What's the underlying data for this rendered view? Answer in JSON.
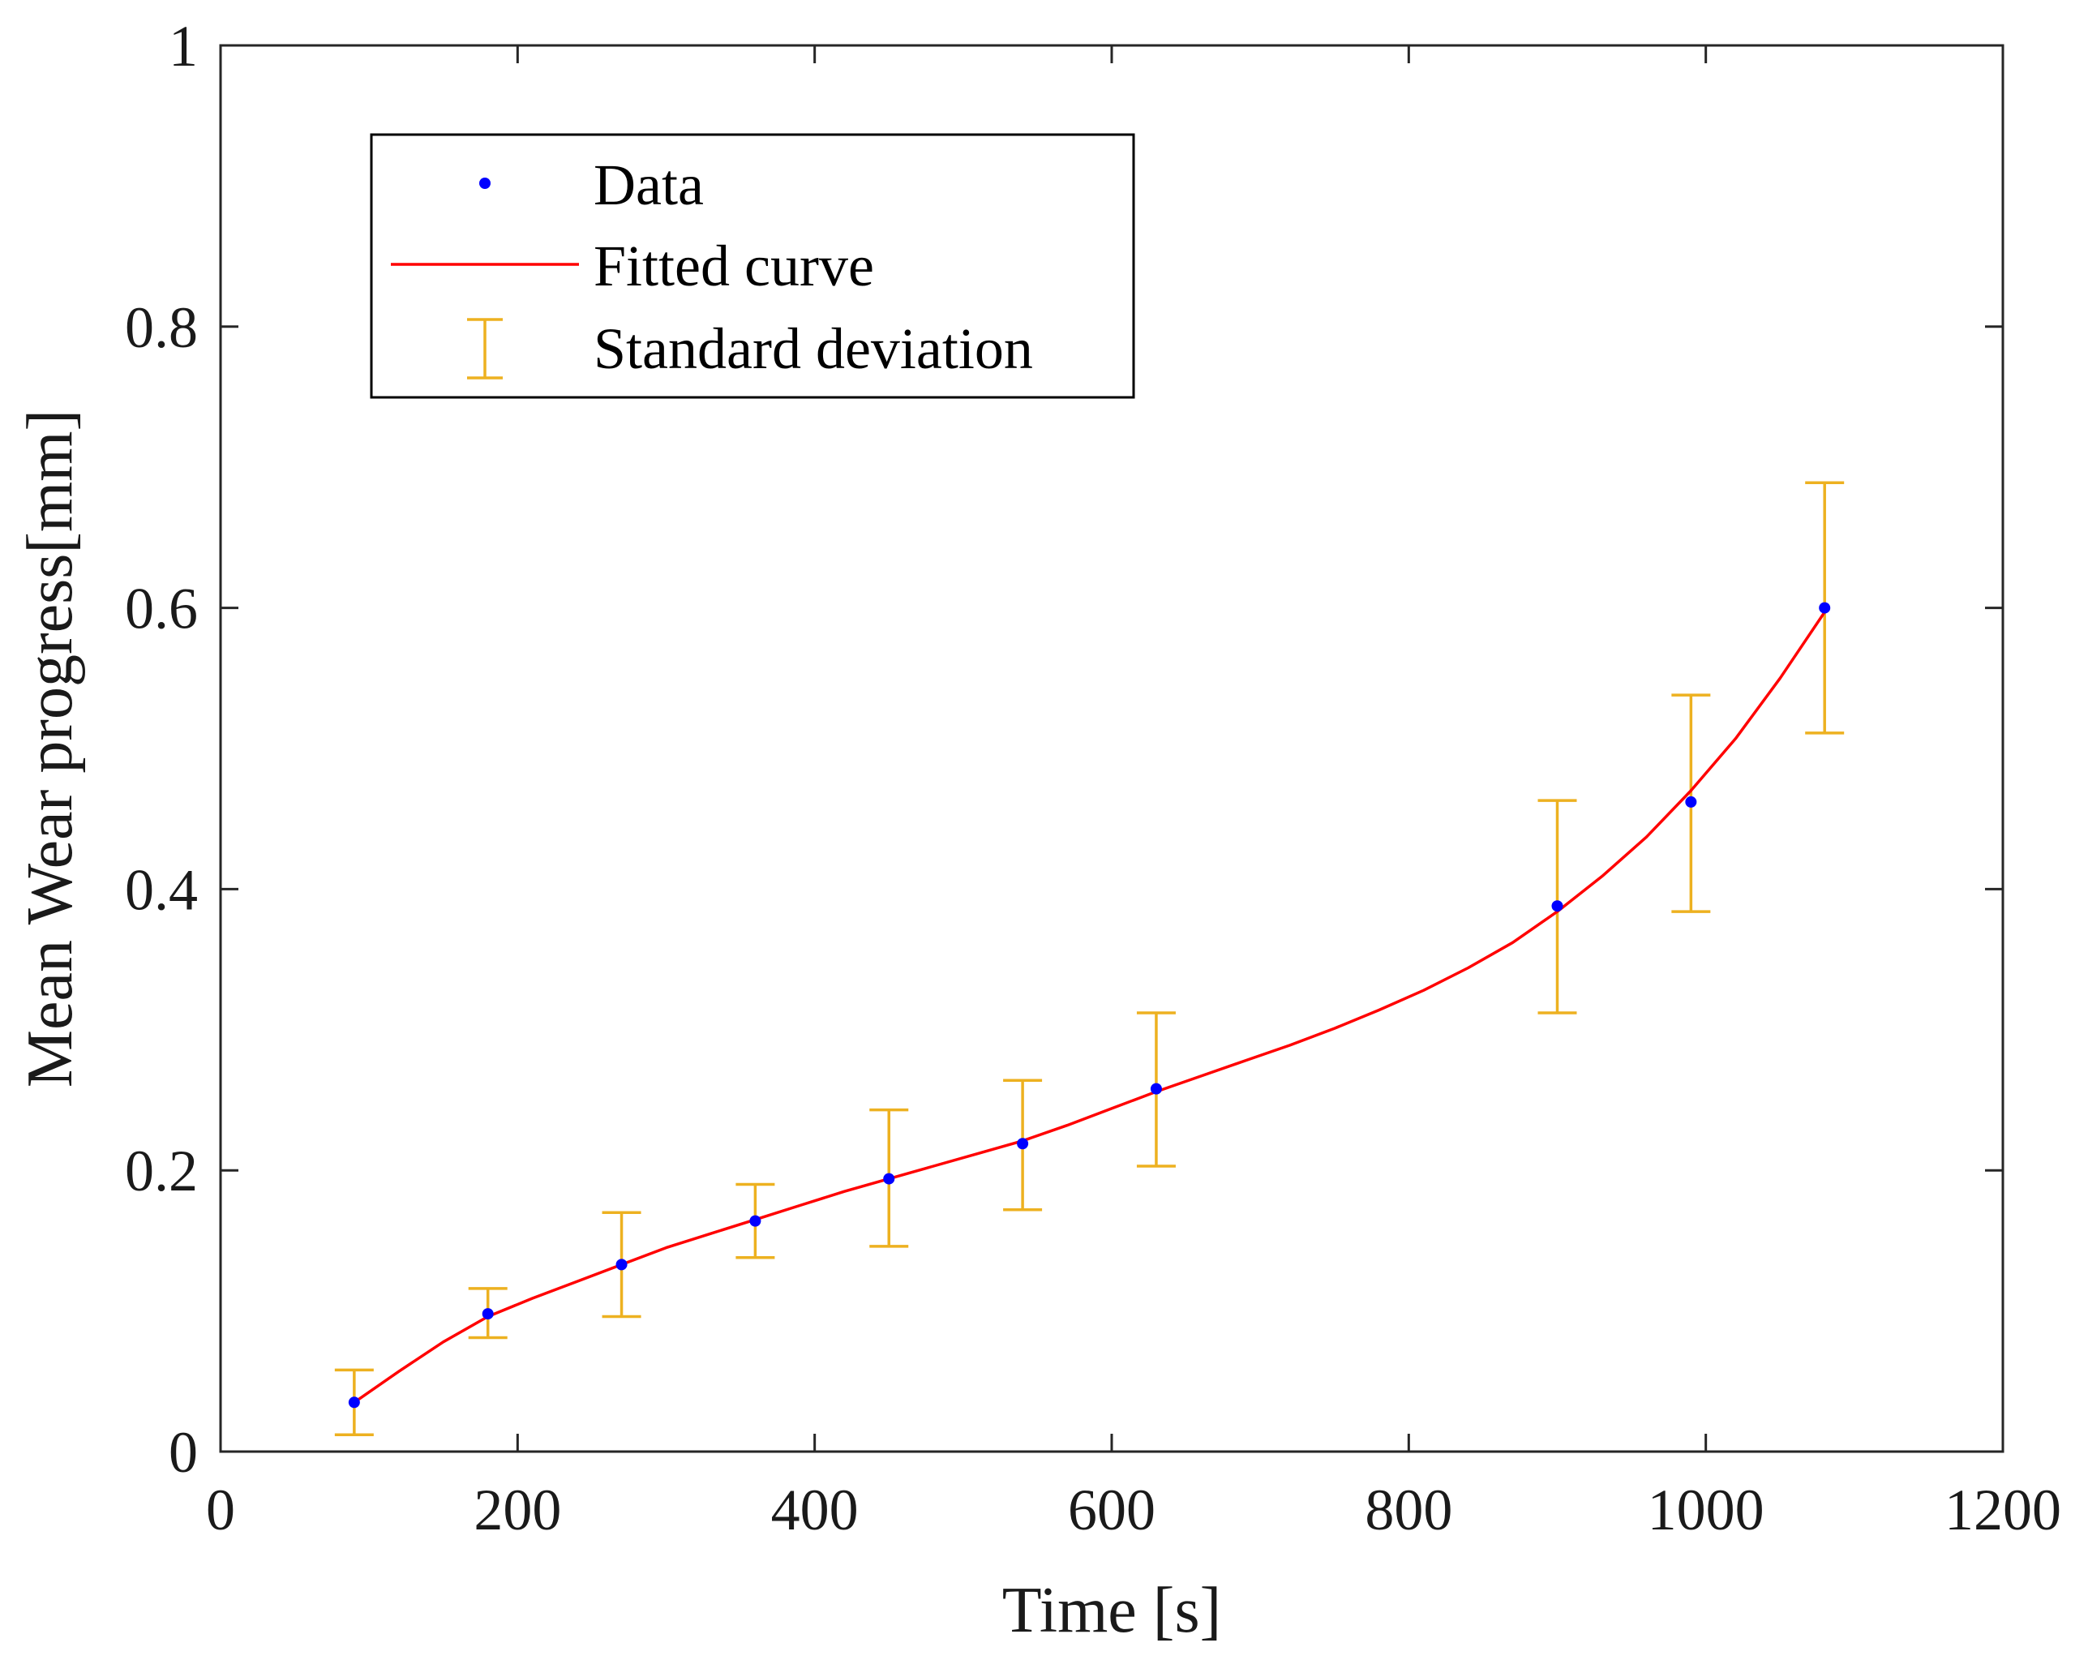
{
  "chart_data": {
    "type": "scatter",
    "title": "",
    "xlabel": "Time [s]",
    "ylabel": "Mean Wear progress[mm]",
    "xlim": [
      0,
      1200
    ],
    "ylim": [
      0,
      1
    ],
    "x_ticks": [
      0,
      200,
      400,
      600,
      800,
      1000,
      1200
    ],
    "y_ticks": [
      0,
      0.2,
      0.4,
      0.6,
      0.8,
      1
    ],
    "x_tick_labels": [
      "0",
      "200",
      "400",
      "600",
      "800",
      "1000",
      "1200"
    ],
    "y_tick_labels": [
      "0",
      "0.2",
      "0.4",
      "0.6",
      "0.8",
      "1"
    ],
    "grid": false,
    "legend_position": "top-left",
    "series": [
      {
        "name": "Data",
        "kind": "points",
        "color": "#0000ff",
        "x": [
          90,
          180,
          270,
          360,
          450,
          540,
          630,
          900,
          990,
          1080
        ],
        "y": [
          0.035,
          0.098,
          0.133,
          0.164,
          0.194,
          0.219,
          0.258,
          0.388,
          0.462,
          0.6
        ]
      },
      {
        "name": "Fitted curve",
        "kind": "line",
        "color": "#ff0000",
        "x": [
          90,
          120,
          150,
          180,
          210,
          240,
          270,
          300,
          330,
          360,
          390,
          420,
          450,
          480,
          510,
          540,
          570,
          600,
          630,
          660,
          690,
          720,
          750,
          780,
          810,
          840,
          870,
          900,
          930,
          960,
          990,
          1020,
          1050,
          1080
        ],
        "y": [
          0.035,
          0.057,
          0.078,
          0.096,
          0.109,
          0.121,
          0.133,
          0.145,
          0.155,
          0.165,
          0.175,
          0.185,
          0.194,
          0.203,
          0.212,
          0.221,
          0.232,
          0.244,
          0.256,
          0.267,
          0.278,
          0.289,
          0.301,
          0.314,
          0.328,
          0.344,
          0.362,
          0.384,
          0.409,
          0.437,
          0.47,
          0.507,
          0.55,
          0.597
        ]
      },
      {
        "name": "Standard deviation",
        "kind": "errorbar",
        "color": "#edb120",
        "x": [
          90,
          180,
          270,
          360,
          450,
          540,
          630,
          900,
          990,
          1080
        ],
        "lower": [
          0.012,
          0.081,
          0.096,
          0.138,
          0.146,
          0.172,
          0.203,
          0.312,
          0.384,
          0.511
        ],
        "upper": [
          0.058,
          0.116,
          0.17,
          0.19,
          0.243,
          0.264,
          0.312,
          0.463,
          0.538,
          0.689
        ]
      }
    ]
  }
}
